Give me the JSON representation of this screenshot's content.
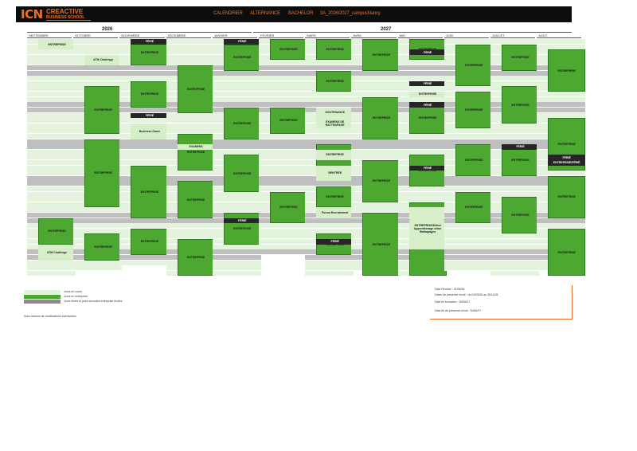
{
  "header": {
    "logo": {
      "mark": "ICN",
      "line1": "CREACTIVE",
      "line2": "BUSINESS SCHOOL"
    },
    "items": [
      "CALENDRIER",
      "ALTERNANCE",
      "BACHELOR",
      "3A_2026/2027_campusNancy"
    ]
  },
  "years": [
    "2026",
    "2027"
  ],
  "months": [
    "SEPTEMBRE",
    "OCTOBRE",
    "NOVEMBRE",
    "DECEMBRE",
    "JANVIER",
    "FEVRIER",
    "MARS",
    "AVRIL",
    "MAI",
    "JUIN",
    "JUILLET",
    "AOUT"
  ],
  "labels": {
    "entreprise": "ENTREPRISE",
    "ferie": "FÉRIÉ",
    "atm": "ATM Challenge",
    "business_game": "Business Game",
    "examens": "EXAMENS",
    "examen_rattrapage": "EXAMENS DE RATTRAPAGE",
    "soutenance": "SOUTENANCE",
    "forum": "Forum Recrutement",
    "entreprise_ferie": "ENTREPRISE/FÉRIÉ",
    "apprentissage": "ENTREPRISE/Début Apprentissage selon Rattrapages",
    "rentree": "RENTRÉE"
  },
  "legend": {
    "line1": "Jours en cours",
    "line2": "Jours en entreprise",
    "line3": "Jours fériés et jours accordés entreprise écoles",
    "note": "Sous réserve de modifications éventuelles"
  },
  "info": {
    "line1": "Date Rentrée : 01/09/26",
    "line2": "Dates de présence école : du 01/09/26 au 30/11/26",
    "line3": "Date fin formation : 30/06/27",
    "line4": "Date fin de présence école : 30/06/27"
  },
  "colors": {
    "orange": "#e8702a",
    "green": "#4da832",
    "lightgreen": "#e4f3dd",
    "grey": "#bfbfbf",
    "dark": "#262626"
  }
}
